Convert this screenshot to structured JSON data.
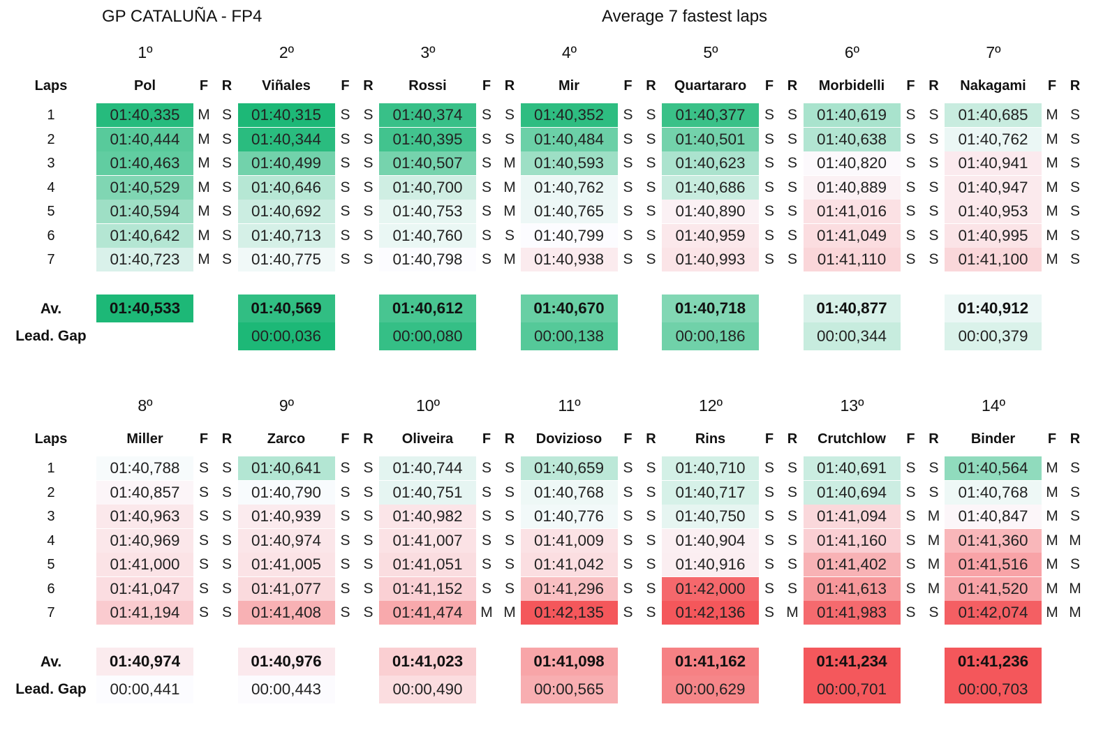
{
  "title": "GP CATALUÑA - FP4",
  "subtitle": "Average 7 fastest laps",
  "labels": {
    "laps": "Laps",
    "front": "F",
    "rear": "R",
    "average": "Av.",
    "leader_gap": "Lead. Gap"
  },
  "lap_numbers": [
    "1",
    "2",
    "3",
    "4",
    "5",
    "6",
    "7"
  ],
  "chart_data": {
    "type": "table",
    "title": "GP CATALUÑA - FP4",
    "subtitle": "Average 7 fastest laps",
    "color_scale": {
      "fast": "#1DB877",
      "mid": "#FCFCFF",
      "slow": "#F4575B"
    },
    "riders": [
      {
        "position": "1º",
        "name": "Pol",
        "laps": [
          "01:40,335",
          "01:40,444",
          "01:40,463",
          "01:40,529",
          "01:40,594",
          "01:40,642",
          "01:40,723"
        ],
        "front": [
          "M",
          "M",
          "M",
          "M",
          "M",
          "M",
          "M"
        ],
        "rear": [
          "S",
          "S",
          "S",
          "S",
          "S",
          "S",
          "S"
        ],
        "average": "01:40,533",
        "gap": ""
      },
      {
        "position": "2º",
        "name": "Viñales",
        "laps": [
          "01:40,315",
          "01:40,344",
          "01:40,499",
          "01:40,646",
          "01:40,692",
          "01:40,713",
          "01:40,775"
        ],
        "front": [
          "S",
          "S",
          "S",
          "S",
          "S",
          "S",
          "S"
        ],
        "rear": [
          "S",
          "S",
          "S",
          "S",
          "S",
          "S",
          "S"
        ],
        "average": "01:40,569",
        "gap": "00:00,036"
      },
      {
        "position": "3º",
        "name": "Rossi",
        "laps": [
          "01:40,374",
          "01:40,395",
          "01:40,507",
          "01:40,700",
          "01:40,753",
          "01:40,760",
          "01:40,798"
        ],
        "front": [
          "S",
          "S",
          "S",
          "S",
          "S",
          "S",
          "S"
        ],
        "rear": [
          "S",
          "S",
          "M",
          "M",
          "M",
          "S",
          "M"
        ],
        "average": "01:40,612",
        "gap": "00:00,080"
      },
      {
        "position": "4º",
        "name": "Mir",
        "laps": [
          "01:40,352",
          "01:40,484",
          "01:40,593",
          "01:40,762",
          "01:40,765",
          "01:40,799",
          "01:40,938"
        ],
        "front": [
          "S",
          "S",
          "S",
          "S",
          "S",
          "S",
          "S"
        ],
        "rear": [
          "S",
          "S",
          "S",
          "S",
          "S",
          "S",
          "S"
        ],
        "average": "01:40,670",
        "gap": "00:00,138"
      },
      {
        "position": "5º",
        "name": "Quartararo",
        "laps": [
          "01:40,377",
          "01:40,501",
          "01:40,623",
          "01:40,686",
          "01:40,890",
          "01:40,959",
          "01:40,993"
        ],
        "front": [
          "S",
          "S",
          "S",
          "S",
          "S",
          "S",
          "S"
        ],
        "rear": [
          "S",
          "S",
          "S",
          "S",
          "S",
          "S",
          "S"
        ],
        "average": "01:40,718",
        "gap": "00:00,186"
      },
      {
        "position": "6º",
        "name": "Morbidelli",
        "laps": [
          "01:40,619",
          "01:40,638",
          "01:40,820",
          "01:40,889",
          "01:41,016",
          "01:41,049",
          "01:41,110"
        ],
        "front": [
          "S",
          "S",
          "S",
          "S",
          "S",
          "S",
          "S"
        ],
        "rear": [
          "S",
          "S",
          "S",
          "S",
          "S",
          "S",
          "S"
        ],
        "average": "01:40,877",
        "gap": "00:00,344"
      },
      {
        "position": "7º",
        "name": "Nakagami",
        "laps": [
          "01:40,685",
          "01:40,762",
          "01:40,941",
          "01:40,947",
          "01:40,953",
          "01:40,995",
          "01:41,100"
        ],
        "front": [
          "M",
          "M",
          "M",
          "M",
          "M",
          "M",
          "M"
        ],
        "rear": [
          "S",
          "S",
          "S",
          "S",
          "S",
          "S",
          "S"
        ],
        "average": "01:40,912",
        "gap": "00:00,379"
      },
      {
        "position": "8º",
        "name": "Miller",
        "laps": [
          "01:40,788",
          "01:40,857",
          "01:40,963",
          "01:40,969",
          "01:41,000",
          "01:41,047",
          "01:41,194"
        ],
        "front": [
          "S",
          "S",
          "S",
          "S",
          "S",
          "S",
          "S"
        ],
        "rear": [
          "S",
          "S",
          "S",
          "S",
          "S",
          "S",
          "S"
        ],
        "average": "01:40,974",
        "gap": "00:00,441"
      },
      {
        "position": "9º",
        "name": "Zarco",
        "laps": [
          "01:40,641",
          "01:40,790",
          "01:40,939",
          "01:40,974",
          "01:41,005",
          "01:41,077",
          "01:41,408"
        ],
        "front": [
          "S",
          "S",
          "S",
          "S",
          "S",
          "S",
          "S"
        ],
        "rear": [
          "S",
          "S",
          "S",
          "S",
          "S",
          "S",
          "S"
        ],
        "average": "01:40,976",
        "gap": "00:00,443"
      },
      {
        "position": "10º",
        "name": "Oliveira",
        "laps": [
          "01:40,744",
          "01:40,751",
          "01:40,982",
          "01:41,007",
          "01:41,051",
          "01:41,152",
          "01:41,474"
        ],
        "front": [
          "S",
          "S",
          "S",
          "S",
          "S",
          "S",
          "M"
        ],
        "rear": [
          "S",
          "S",
          "S",
          "S",
          "S",
          "S",
          "M"
        ],
        "average": "01:41,023",
        "gap": "00:00,490"
      },
      {
        "position": "11º",
        "name": "Dovizioso",
        "laps": [
          "01:40,659",
          "01:40,768",
          "01:40,776",
          "01:41,009",
          "01:41,042",
          "01:41,296",
          "01:42,135"
        ],
        "front": [
          "S",
          "S",
          "S",
          "S",
          "S",
          "S",
          "S"
        ],
        "rear": [
          "S",
          "S",
          "S",
          "S",
          "S",
          "S",
          "S"
        ],
        "average": "01:41,098",
        "gap": "00:00,565"
      },
      {
        "position": "12º",
        "name": "Rins",
        "laps": [
          "01:40,710",
          "01:40,717",
          "01:40,750",
          "01:40,904",
          "01:40,916",
          "01:42,000",
          "01:42,136"
        ],
        "front": [
          "S",
          "S",
          "S",
          "S",
          "S",
          "S",
          "S"
        ],
        "rear": [
          "S",
          "S",
          "S",
          "S",
          "S",
          "S",
          "M"
        ],
        "average": "01:41,162",
        "gap": "00:00,629"
      },
      {
        "position": "13º",
        "name": "Crutchlow",
        "laps": [
          "01:40,691",
          "01:40,694",
          "01:41,094",
          "01:41,160",
          "01:41,402",
          "01:41,613",
          "01:41,983"
        ],
        "front": [
          "S",
          "S",
          "S",
          "S",
          "S",
          "S",
          "S"
        ],
        "rear": [
          "S",
          "S",
          "M",
          "M",
          "M",
          "M",
          "S"
        ],
        "average": "01:41,234",
        "gap": "00:00,701"
      },
      {
        "position": "14º",
        "name": "Binder",
        "laps": [
          "01:40,564",
          "01:40,768",
          "01:40,847",
          "01:41,360",
          "01:41,516",
          "01:41,520",
          "01:42,074"
        ],
        "front": [
          "M",
          "M",
          "M",
          "M",
          "M",
          "M",
          "M"
        ],
        "rear": [
          "S",
          "S",
          "S",
          "M",
          "S",
          "M",
          "M"
        ],
        "average": "01:41,236",
        "gap": "00:00,703"
      }
    ]
  }
}
